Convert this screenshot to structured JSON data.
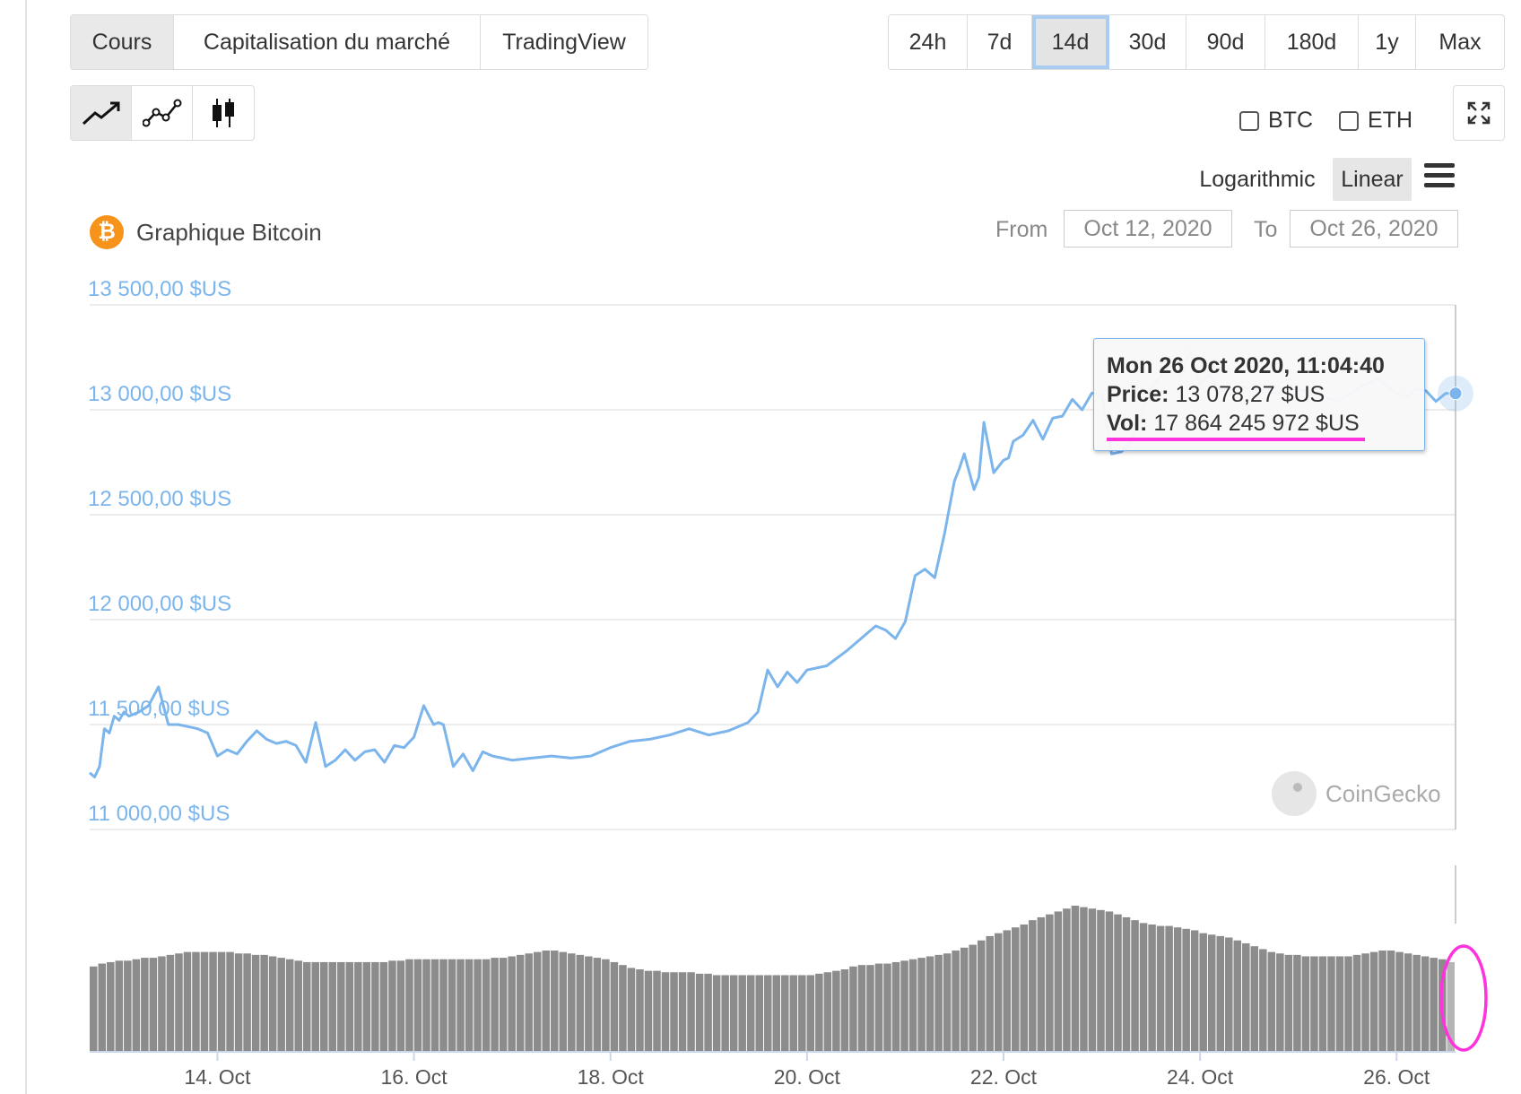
{
  "tabs": [
    {
      "label": "Cours",
      "active": true
    },
    {
      "label": "Capitalisation du marché",
      "active": false
    },
    {
      "label": "TradingView",
      "active": false
    }
  ],
  "ranges": [
    {
      "label": "24h",
      "active": false
    },
    {
      "label": "7d",
      "active": false
    },
    {
      "label": "14d",
      "active": true
    },
    {
      "label": "30d",
      "active": false
    },
    {
      "label": "90d",
      "active": false
    },
    {
      "label": "180d",
      "active": false
    },
    {
      "label": "1y",
      "active": false
    },
    {
      "label": "Max",
      "active": false
    }
  ],
  "chart_types": [
    {
      "icon": "line-chart-icon",
      "active": true
    },
    {
      "icon": "point-line-chart-icon",
      "active": false
    },
    {
      "icon": "candlestick-icon",
      "active": false
    }
  ],
  "compare": [
    {
      "label": "BTC"
    },
    {
      "label": "ETH"
    }
  ],
  "scale": {
    "log_label": "Logarithmic",
    "linear_label": "Linear",
    "active": "Linear"
  },
  "title": "Graphique Bitcoin",
  "range_inputs": {
    "from_label": "From",
    "from": "Oct 12, 2020",
    "to_label": "To",
    "to": "Oct 26, 2020"
  },
  "tooltip": {
    "date": "Mon 26 Oct 2020, 11:04:40",
    "price_label": "Price:",
    "price": "13 078,27 $US",
    "vol_label": "Vol:",
    "vol": "17 864 245 972 $US"
  },
  "watermark": "CoinGecko",
  "colors": {
    "line": "#7cb5ec",
    "volume": "#8c8c8c",
    "annotation": "#ff33dd"
  },
  "chart_data": {
    "type": "line",
    "title": "Graphique Bitcoin",
    "ylabel": "",
    "ylim": [
      11000,
      13500
    ],
    "xlim": [
      12.7,
      26.6
    ],
    "y_ticks": [
      11000,
      11500,
      12000,
      12500,
      13000,
      13500
    ],
    "y_tick_labels": [
      "11 000,00 $US",
      "11 500,00 $US",
      "12 000,00 $US",
      "12 500,00 $US",
      "13 000,00 $US",
      "13 500,00 $US"
    ],
    "x_ticks": [
      14,
      16,
      18,
      20,
      22,
      24,
      26
    ],
    "x_tick_labels": [
      "14. Oct",
      "16. Oct",
      "18. Oct",
      "20. Oct",
      "22. Oct",
      "24. Oct",
      "26. Oct"
    ],
    "grid": true,
    "series": [
      {
        "x": [
          12.7,
          12.75,
          12.8,
          12.85,
          12.9,
          12.95,
          13.0,
          13.05,
          13.1,
          13.2,
          13.3,
          13.4,
          13.5,
          13.6,
          13.7,
          13.8,
          13.9,
          14.0,
          14.1,
          14.2,
          14.3,
          14.4,
          14.5,
          14.6,
          14.7,
          14.8,
          14.9,
          15.0,
          15.1,
          15.2,
          15.3,
          15.4,
          15.5,
          15.6,
          15.7,
          15.8,
          15.9,
          16.0,
          16.1,
          16.2,
          16.25,
          16.3,
          16.4,
          16.5,
          16.6,
          16.7,
          16.8,
          16.9,
          17.0,
          17.2,
          17.4,
          17.6,
          17.8,
          18.0,
          18.2,
          18.4,
          18.6,
          18.8,
          19.0,
          19.2,
          19.4,
          19.5,
          19.6,
          19.7,
          19.8,
          19.9,
          20.0,
          20.2,
          20.4,
          20.6,
          20.7,
          20.8,
          20.9,
          21.0,
          21.1,
          21.2,
          21.3,
          21.4,
          21.5,
          21.55,
          21.6,
          21.7,
          21.75,
          21.8,
          21.9,
          22.0,
          22.05,
          22.1,
          22.2,
          22.3,
          22.4,
          22.5,
          22.6,
          22.7,
          22.8,
          22.9,
          23.0,
          23.1,
          23.2,
          23.3,
          23.5,
          23.7,
          23.8,
          23.9,
          24.0,
          24.1,
          24.2,
          24.4,
          24.6,
          24.8,
          25.0,
          25.2,
          25.4,
          25.6,
          25.8,
          26.0,
          26.1,
          26.2,
          26.3,
          26.4,
          26.5,
          26.6
        ],
        "y": [
          11270,
          11250,
          11300,
          11480,
          11460,
          11540,
          11520,
          11560,
          11540,
          11560,
          11590,
          11680,
          11500,
          11500,
          11490,
          11480,
          11460,
          11350,
          11380,
          11360,
          11420,
          11470,
          11430,
          11410,
          11420,
          11400,
          11320,
          11510,
          11300,
          11330,
          11380,
          11330,
          11370,
          11380,
          11320,
          11400,
          11390,
          11440,
          11590,
          11500,
          11510,
          11500,
          11300,
          11360,
          11280,
          11370,
          11350,
          11340,
          11330,
          11340,
          11350,
          11340,
          11350,
          11390,
          11420,
          11430,
          11450,
          11480,
          11450,
          11470,
          11510,
          11560,
          11760,
          11680,
          11750,
          11700,
          11760,
          11780,
          11850,
          11930,
          11970,
          11950,
          11910,
          11990,
          12210,
          12240,
          12200,
          12410,
          12660,
          12720,
          12790,
          12620,
          12680,
          12940,
          12700,
          12760,
          12770,
          12850,
          12880,
          12950,
          12860,
          12960,
          12970,
          13050,
          13000,
          13080,
          13070,
          12790,
          12800,
          12850,
          13100,
          13220,
          13160,
          13280,
          13120,
          13170,
          13090,
          13110,
          13090,
          13080,
          13100,
          13070,
          13040,
          13100,
          13150,
          13080,
          13060,
          13100,
          13090,
          13040,
          13078,
          13078
        ]
      }
    ],
    "volume": {
      "x_range": [
        12.7,
        26.6
      ],
      "values": [
        59,
        61,
        62,
        63,
        63,
        64,
        65,
        65,
        66,
        67,
        68,
        69,
        69,
        69,
        69,
        69,
        69,
        68,
        68,
        67,
        67,
        66,
        65,
        64,
        63,
        62,
        62,
        62,
        62,
        62,
        62,
        62,
        62,
        62,
        62,
        63,
        63,
        64,
        64,
        64,
        64,
        64,
        64,
        64,
        64,
        64,
        64,
        65,
        65,
        66,
        67,
        68,
        69,
        70,
        70,
        69,
        68,
        67,
        66,
        65,
        64,
        62,
        60,
        58,
        57,
        56,
        56,
        55,
        55,
        55,
        55,
        54,
        54,
        53,
        53,
        53,
        53,
        53,
        53,
        53,
        53,
        53,
        53,
        53,
        53,
        54,
        55,
        56,
        57,
        59,
        60,
        60,
        61,
        61,
        62,
        63,
        64,
        65,
        66,
        67,
        68,
        70,
        72,
        74,
        77,
        80,
        82,
        84,
        86,
        88,
        91,
        93,
        95,
        97,
        99,
        101,
        100,
        99,
        98,
        97,
        95,
        93,
        91,
        89,
        88,
        87,
        87,
        86,
        85,
        84,
        82,
        81,
        80,
        79,
        77,
        75,
        73,
        71,
        69,
        68,
        67,
        67,
        66,
        66,
        66,
        66,
        66,
        66,
        67,
        68,
        69,
        70,
        70,
        69,
        68,
        67,
        66,
        65,
        64,
        62
      ]
    }
  }
}
